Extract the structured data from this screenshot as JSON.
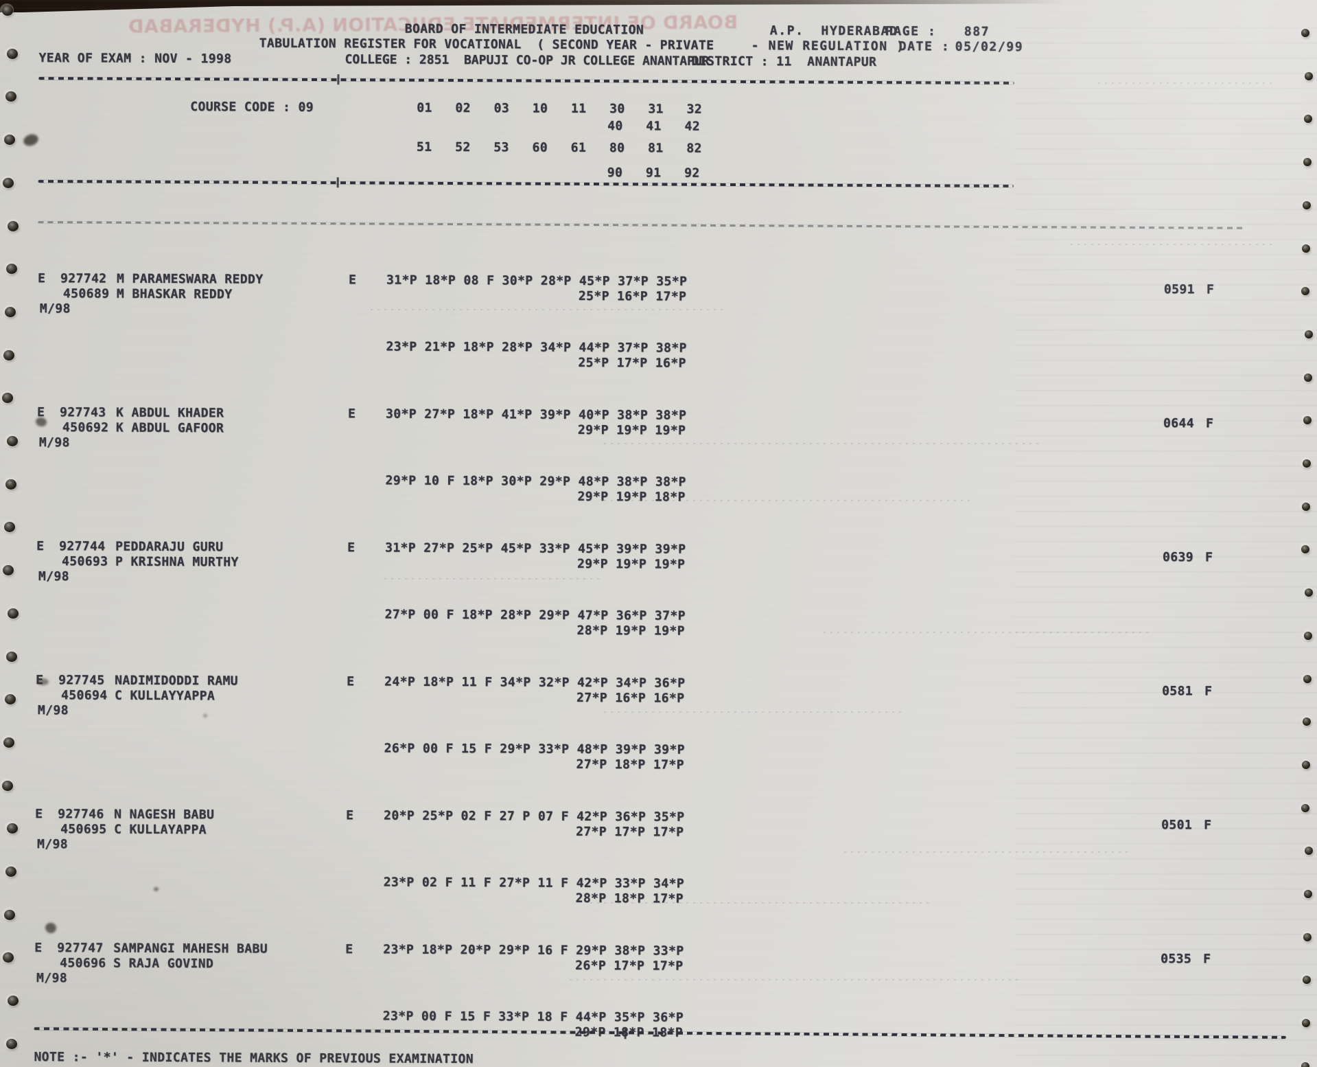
{
  "colors": {
    "ink": "#35363f",
    "dash_ink": "#2e2f38",
    "paper": "#d8d7d2",
    "ghost_ink": "#b76262"
  },
  "header": {
    "board_title": "BOARD OF INTERMEDIATE EDUCATION",
    "board_place": "A.P.  HYDERABAD",
    "page_label": "PAGE :",
    "page_number": "887",
    "register_line": "TABULATION REGISTER FOR VOCATIONAL  ( SECOND YEAR -",
    "register_type": "PRIVATE",
    "register_regulation": "- NEW REGULATION )",
    "date_label": "DATE :",
    "date_value": "05/02/99",
    "year_of_exam": "YEAR OF EXAM : NOV - 1998",
    "college_line": "COLLEGE : 2851  BAPUJI CO-OP JR COLLEGE ANANTAPUR",
    "district_line": "DISTRICT : 11  ANANTAPUR",
    "ghost_text": "BOARD OF INTERMEDIATE EDUCATION (A.P.) HYDERABAD"
  },
  "course": {
    "label": "COURSE CODE : 09",
    "codes_row1": "01   02   03   10   11   30   31   32",
    "codes_row2": "40   41   42",
    "codes_row3": "51   52   53   60   61   80   81   82",
    "codes_row4": "90   91   92"
  },
  "records": [
    {
      "flag": "E",
      "reg_no": "927742",
      "name": "M PARAMESWARA REDDY",
      "prev_no": "450689",
      "father_name": "M BHASKAR REDDY",
      "month_year": "M/98",
      "medium": "E",
      "marks1a": "31*P 18*P 08 F 30*P 28*P 45*P 37*P 35*P",
      "marks1b": "25*P 16*P 17*P",
      "marks2a": "23*P 21*P 18*P 28*P 34*P 44*P 37*P 38*P",
      "marks2b": "25*P 17*P 16*P",
      "total": "0591",
      "result": "F"
    },
    {
      "flag": "E",
      "reg_no": "927743",
      "name": "K ABDUL KHADER",
      "prev_no": "450692",
      "father_name": "K ABDUL GAFOOR",
      "month_year": "M/98",
      "medium": "E",
      "marks1a": "30*P 27*P 18*P 41*P 39*P 40*P 38*P 38*P",
      "marks1b": "29*P 19*P 19*P",
      "marks2a": "29*P 10 F 18*P 30*P 29*P 48*P 38*P 38*P",
      "marks2b": "29*P 19*P 18*P",
      "total": "0644",
      "result": "F"
    },
    {
      "flag": "E",
      "reg_no": "927744",
      "name": "PEDDARAJU GURU",
      "prev_no": "450693",
      "father_name": "P KRISHNA MURTHY",
      "month_year": "M/98",
      "medium": "E",
      "marks1a": "31*P 27*P 25*P 45*P 33*P 45*P 39*P 39*P",
      "marks1b": "29*P 19*P 19*P",
      "marks2a": "27*P 00 F 18*P 28*P 29*P 47*P 36*P 37*P",
      "marks2b": "28*P 19*P 19*P",
      "total": "0639",
      "result": "F"
    },
    {
      "flag": "E",
      "reg_no": "927745",
      "name": "NADIMIDODDI RAMU",
      "prev_no": "450694",
      "father_name": "C KULLAYYAPPA",
      "month_year": "M/98",
      "medium": "E",
      "marks1a": "24*P 18*P 11 F 34*P 32*P 42*P 34*P 36*P",
      "marks1b": "27*P 16*P 16*P",
      "marks2a": "26*P 00 F 15 F 29*P 33*P 48*P 39*P 39*P",
      "marks2b": "27*P 18*P 17*P",
      "total": "0581",
      "result": "F"
    },
    {
      "flag": "E",
      "reg_no": "927746",
      "name": "N NAGESH BABU",
      "prev_no": "450695",
      "father_name": "C KULLAYAPPA",
      "month_year": "M/98",
      "medium": "E",
      "marks1a": "20*P 25*P 02 F 27 P 07 F 42*P 36*P 35*P",
      "marks1b": "27*P 17*P 17*P",
      "marks2a": "23*P 02 F 11 F 27*P 11 F 42*P 33*P 34*P",
      "marks2b": "28*P 18*P 17*P",
      "total": "0501",
      "result": "F"
    },
    {
      "flag": "E",
      "reg_no": "927747",
      "name": "SAMPANGI MAHESH BABU",
      "prev_no": "450696",
      "father_name": "S RAJA GOVIND",
      "month_year": "M/98",
      "medium": "E",
      "marks1a": "23*P 18*P 20*P 29*P 16 F 29*P 38*P 33*P",
      "marks1b": "26*P 17*P 17*P",
      "marks2a": "23*P 00 F 15 F 33*P 18 F 44*P 35*P 36*P",
      "marks2b": "29*P 18*P 18*P",
      "total": "0535",
      "result": "F"
    }
  ],
  "footer": {
    "note": "NOTE :- '*' - INDICATES THE MARKS OF PREVIOUS EXAMINATION"
  }
}
